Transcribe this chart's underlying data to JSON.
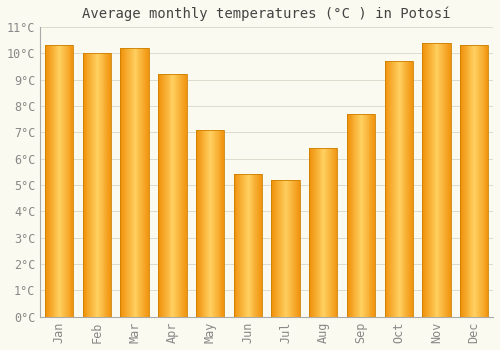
{
  "title": "Average monthly temperatures (°C ) in Potosí",
  "months": [
    "Jan",
    "Feb",
    "Mar",
    "Apr",
    "May",
    "Jun",
    "Jul",
    "Aug",
    "Sep",
    "Oct",
    "Nov",
    "Dec"
  ],
  "values": [
    10.3,
    10.0,
    10.2,
    9.2,
    7.1,
    5.4,
    5.2,
    6.4,
    7.7,
    9.7,
    10.4,
    10.3
  ],
  "bar_color_center": "#FFD060",
  "bar_color_edge": "#F0900A",
  "bar_edgecolor": "#CC8000",
  "ylim": [
    0,
    11
  ],
  "ytick_values": [
    0,
    1,
    2,
    3,
    4,
    5,
    6,
    7,
    8,
    9,
    10,
    11
  ],
  "background_color": "#FAFAF0",
  "grid_color": "#DDDDCC",
  "title_fontsize": 10,
  "tick_fontsize": 8.5,
  "tick_color": "#888888",
  "figsize": [
    5.0,
    3.5
  ],
  "dpi": 100
}
